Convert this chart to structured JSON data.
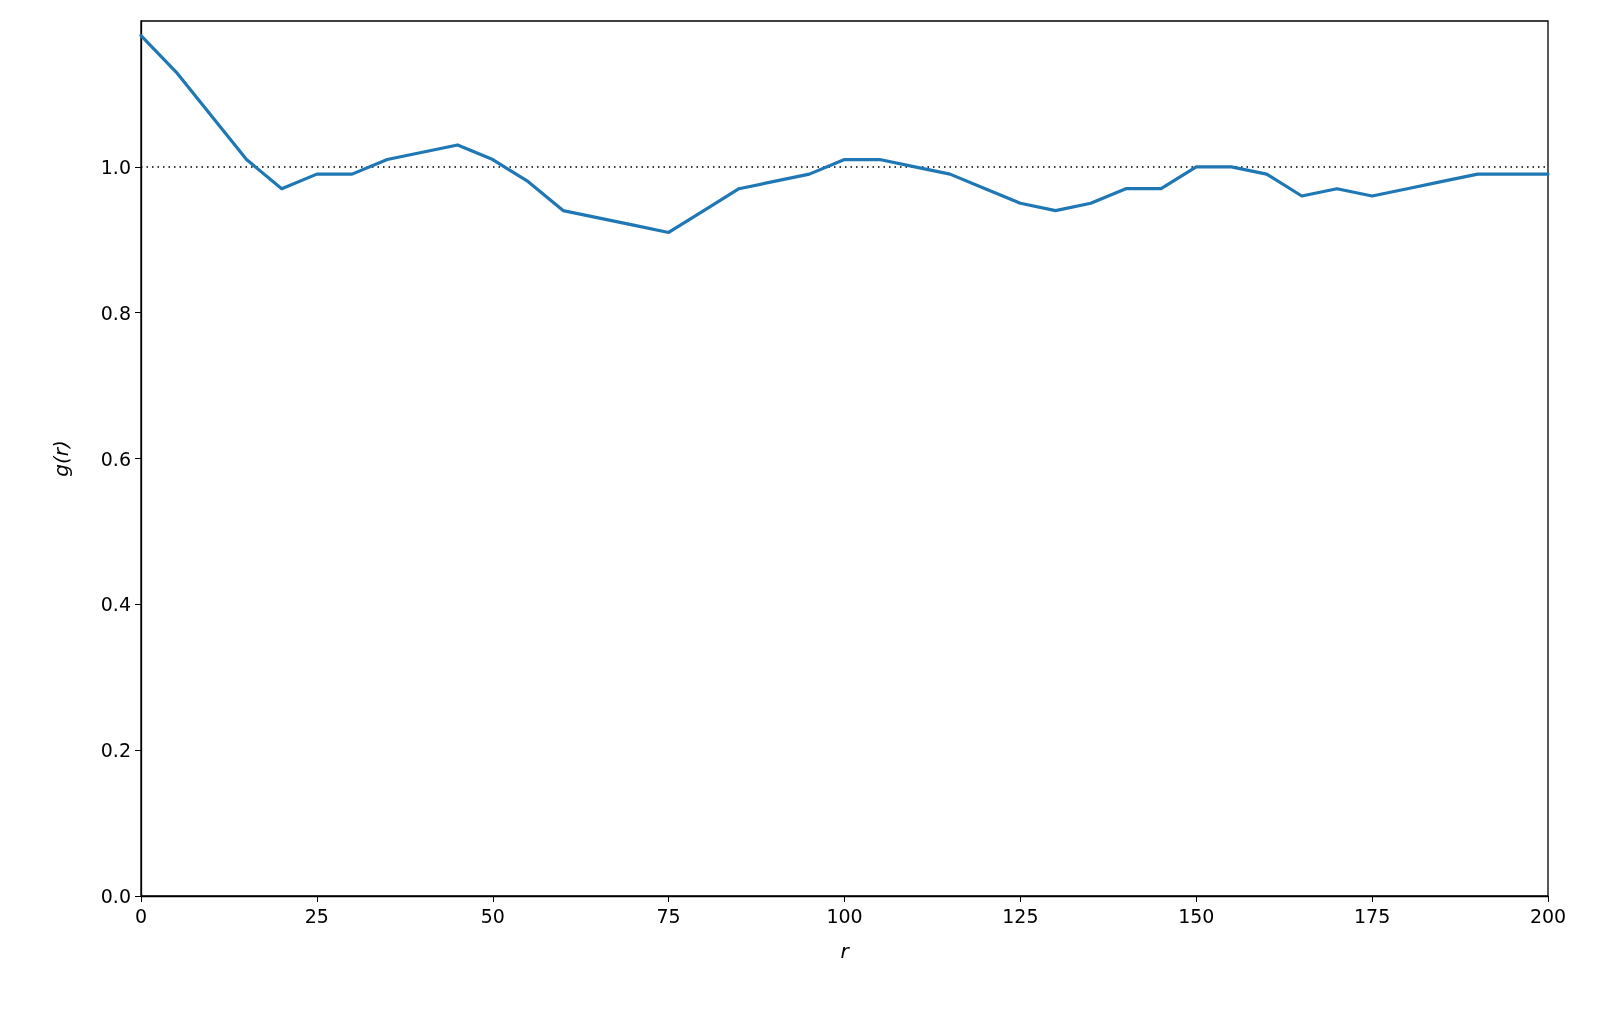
{
  "chart_data": {
    "type": "line",
    "xlabel": "r",
    "ylabel": "g(r)",
    "x": [
      0,
      5,
      10,
      15,
      20,
      25,
      30,
      35,
      40,
      45,
      50,
      55,
      60,
      65,
      70,
      75,
      80,
      85,
      90,
      95,
      100,
      105,
      110,
      115,
      120,
      125,
      130,
      135,
      140,
      145,
      150,
      155,
      160,
      165,
      170,
      175,
      180,
      185,
      190,
      195,
      200
    ],
    "series": [
      {
        "color": "#1f77b4",
        "values": [
          1.18,
          1.13,
          1.07,
          1.01,
          0.97,
          0.99,
          0.99,
          1.01,
          1.02,
          1.03,
          1.01,
          0.98,
          0.94,
          0.93,
          0.92,
          0.91,
          0.94,
          0.97,
          0.98,
          0.99,
          1.01,
          1.01,
          1.0,
          0.99,
          0.97,
          0.95,
          0.94,
          0.95,
          0.97,
          0.97,
          1.0,
          1.0,
          0.99,
          0.96,
          0.97,
          0.96,
          0.97,
          0.98,
          0.99,
          0.99,
          0.99
        ]
      }
    ],
    "xlim": [
      0,
      200
    ],
    "xticks": [
      0,
      25,
      50,
      75,
      100,
      125,
      150,
      175,
      200
    ],
    "ylim": [
      0,
      1.2
    ],
    "yticks": [
      {
        "value": 0,
        "label": "0.0"
      },
      {
        "value": 0.2,
        "label": "0.2"
      },
      {
        "value": 0.4,
        "label": "0.4"
      },
      {
        "value": 0.6,
        "label": "0.6"
      },
      {
        "value": 0.8,
        "label": "0.8"
      },
      {
        "value": 1,
        "label": "1.0"
      }
    ],
    "ref_lines": [
      {
        "axis": "y",
        "value": 1,
        "color": "#000000",
        "line_style": "dotted"
      }
    ],
    "grid": false,
    "marker": "none",
    "line_style": "solid"
  }
}
